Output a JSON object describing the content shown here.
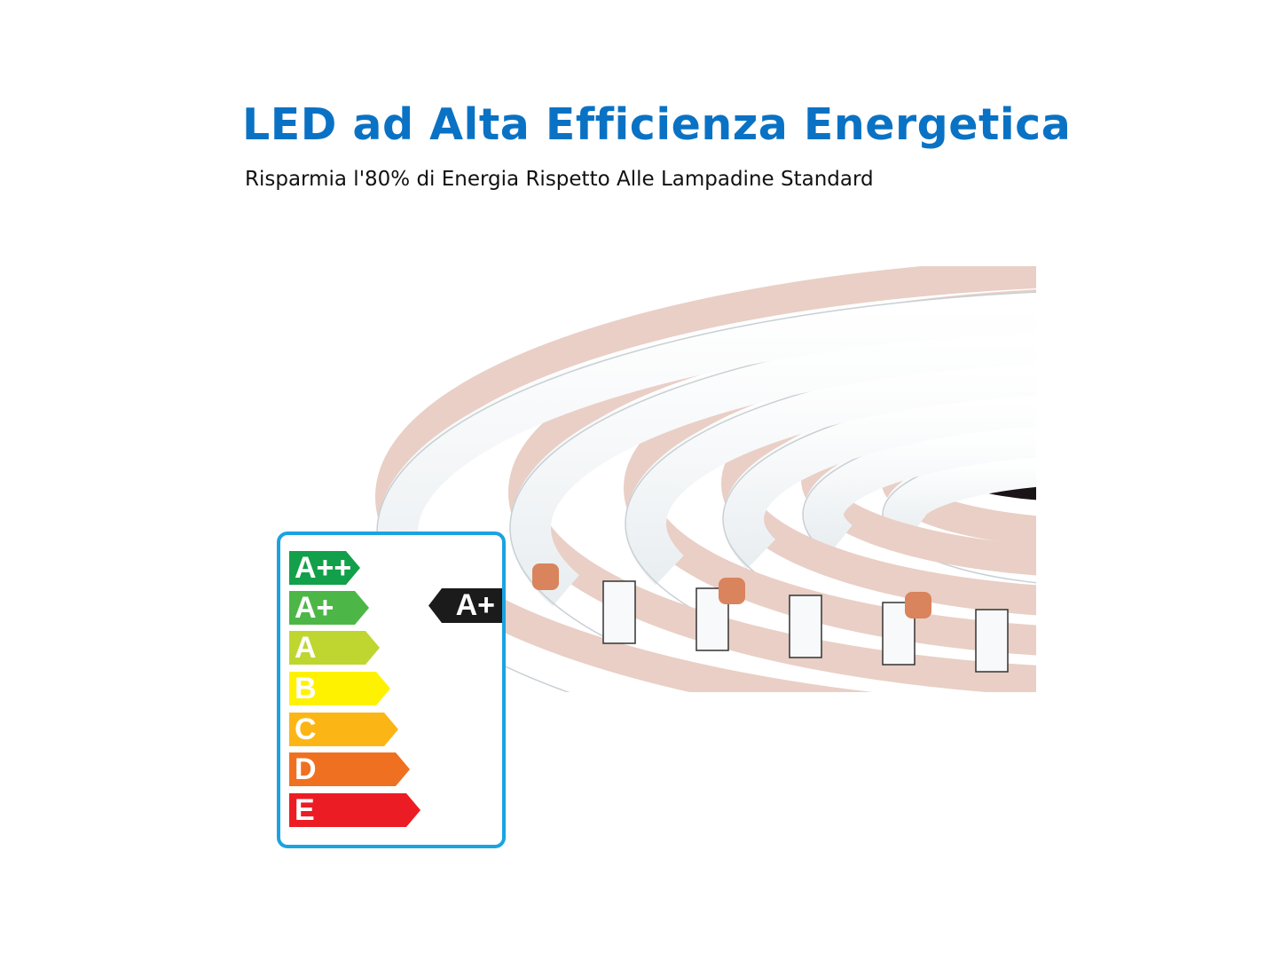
{
  "header": {
    "title": "LED ad Alta Efficienza Energetica",
    "subtitle": "Risparmia l'80% di Energia Rispetto Alle Lampadine Standard"
  },
  "energy_label": {
    "classes": [
      {
        "label": "A++",
        "color": "#12a04a"
      },
      {
        "label": "A+",
        "color": "#4cb747"
      },
      {
        "label": "A",
        "color": "#bfd630"
      },
      {
        "label": "B",
        "color": "#fff200"
      },
      {
        "label": "C",
        "color": "#fbb616"
      },
      {
        "label": "D",
        "color": "#f07022"
      },
      {
        "label": "E",
        "color": "#ec1c24"
      }
    ],
    "rating": "A+",
    "border_color": "#1ba3e0"
  }
}
